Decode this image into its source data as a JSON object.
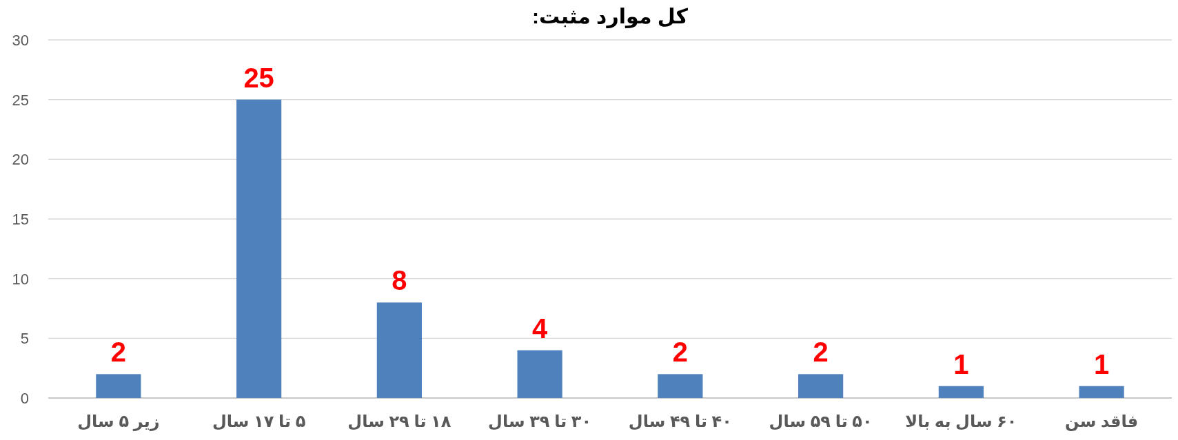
{
  "chart_data": {
    "type": "bar",
    "title": "کل موارد مثبت:",
    "categories": [
      "زیر ۵ سال",
      "۵ تا ۱۷ سال",
      "۱۸ تا ۲۹ سال",
      "۳۰ تا ۳۹ سال",
      "۴۰ تا ۴۹ سال",
      "۵۰ تا ۵۹ سال",
      "۶۰ سال به بالا",
      "فاقد سن"
    ],
    "values": [
      2,
      25,
      8,
      4,
      2,
      2,
      1,
      1
    ],
    "color": "#4f81bd",
    "ylim": [
      0,
      30
    ],
    "yticks": [
      0,
      5,
      10,
      15,
      20,
      25,
      30
    ],
    "grid": "y",
    "data_labels": true
  }
}
